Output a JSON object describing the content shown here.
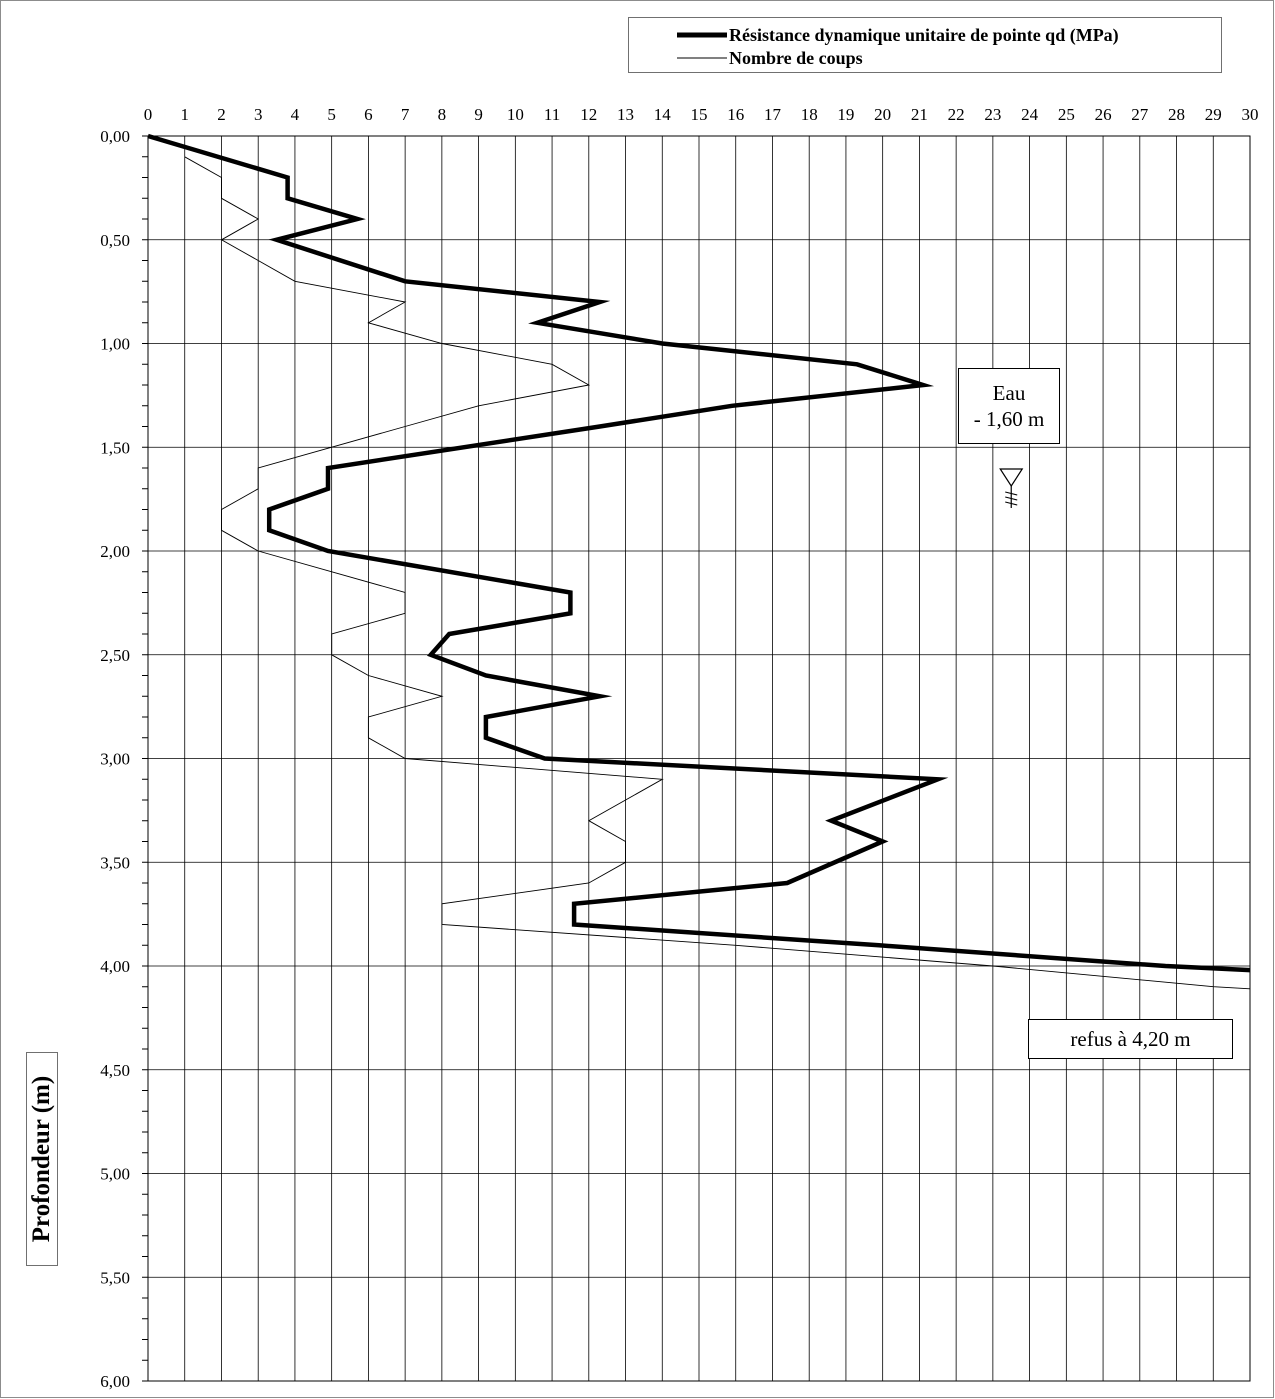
{
  "chart_data": {
    "type": "line",
    "orientation": "depth-profile",
    "x_ticks": [
      "0",
      "1",
      "2",
      "3",
      "4",
      "5",
      "6",
      "7",
      "8",
      "9",
      "10",
      "11",
      "12",
      "13",
      "14",
      "15",
      "16",
      "17",
      "18",
      "19",
      "20",
      "21",
      "22",
      "23",
      "24",
      "25",
      "26",
      "27",
      "28",
      "29",
      "30"
    ],
    "y_ticks": [
      {
        "value": 0.0,
        "label": "0,00"
      },
      {
        "value": 0.5,
        "label": "0,50"
      },
      {
        "value": 1.0,
        "label": "1,00"
      },
      {
        "value": 1.5,
        "label": "1,50"
      },
      {
        "value": 2.0,
        "label": "2,00"
      },
      {
        "value": 2.5,
        "label": "2,50"
      },
      {
        "value": 3.0,
        "label": "3,00"
      },
      {
        "value": 3.5,
        "label": "3,50"
      },
      {
        "value": 4.0,
        "label": "4,00"
      },
      {
        "value": 4.5,
        "label": "4,50"
      },
      {
        "value": 5.0,
        "label": "5,00"
      },
      {
        "value": 5.5,
        "label": "5,50"
      },
      {
        "value": 6.0,
        "label": "6,00"
      }
    ],
    "xlim": [
      0,
      30
    ],
    "ylim": [
      0,
      6
    ],
    "y_inverted": true,
    "ylabel": "Profondeur (m)",
    "grid": true,
    "legend_position": "top-right",
    "series": [
      {
        "name": "Résistance dynamique unitaire de pointe qd (MPa)",
        "color": "#000000",
        "style": "thick",
        "points": [
          [
            0,
            0.0
          ],
          [
            3.8,
            0.2
          ],
          [
            3.8,
            0.3
          ],
          [
            5.7,
            0.4
          ],
          [
            3.5,
            0.5
          ],
          [
            7.0,
            0.7
          ],
          [
            12.3,
            0.8
          ],
          [
            10.6,
            0.9
          ],
          [
            14.0,
            1.0
          ],
          [
            19.3,
            1.1
          ],
          [
            21.1,
            1.2
          ],
          [
            15.9,
            1.3
          ],
          [
            12.3,
            1.4
          ],
          [
            4.9,
            1.6
          ],
          [
            4.9,
            1.7
          ],
          [
            3.3,
            1.8
          ],
          [
            3.3,
            1.9
          ],
          [
            4.9,
            2.0
          ],
          [
            11.5,
            2.2
          ],
          [
            11.5,
            2.3
          ],
          [
            8.2,
            2.4
          ],
          [
            7.7,
            2.5
          ],
          [
            9.2,
            2.6
          ],
          [
            12.3,
            2.7
          ],
          [
            9.2,
            2.8
          ],
          [
            9.2,
            2.9
          ],
          [
            10.8,
            3.0
          ],
          [
            21.5,
            3.1
          ],
          [
            18.6,
            3.3
          ],
          [
            20.0,
            3.4
          ],
          [
            17.4,
            3.6
          ],
          [
            11.6,
            3.7
          ],
          [
            11.6,
            3.8
          ],
          [
            19.9,
            3.9
          ],
          [
            27.7,
            4.0
          ],
          [
            30.0,
            4.02
          ]
        ]
      },
      {
        "name": "Nombre de coups",
        "color": "#000000",
        "style": "thin",
        "points": [
          [
            1,
            0.1
          ],
          [
            2,
            0.2
          ],
          [
            2,
            0.3
          ],
          [
            3,
            0.4
          ],
          [
            2,
            0.5
          ],
          [
            3,
            0.6
          ],
          [
            4,
            0.7
          ],
          [
            7,
            0.8
          ],
          [
            6,
            0.9
          ],
          [
            8,
            1.0
          ],
          [
            11,
            1.1
          ],
          [
            12,
            1.2
          ],
          [
            9,
            1.3
          ],
          [
            7,
            1.4
          ],
          [
            3,
            1.6
          ],
          [
            3,
            1.7
          ],
          [
            2,
            1.8
          ],
          [
            2,
            1.9
          ],
          [
            3,
            2.0
          ],
          [
            7,
            2.2
          ],
          [
            7,
            2.3
          ],
          [
            5,
            2.4
          ],
          [
            5,
            2.5
          ],
          [
            6,
            2.6
          ],
          [
            8,
            2.7
          ],
          [
            6,
            2.8
          ],
          [
            6,
            2.9
          ],
          [
            7,
            3.0
          ],
          [
            14,
            3.1
          ],
          [
            12,
            3.3
          ],
          [
            13,
            3.4
          ],
          [
            13,
            3.5
          ],
          [
            12,
            3.6
          ],
          [
            8,
            3.7
          ],
          [
            8,
            3.8
          ],
          [
            16,
            3.9
          ],
          [
            23,
            4.0
          ],
          [
            29,
            4.1
          ],
          [
            30,
            4.11
          ]
        ]
      }
    ],
    "annotations": [
      {
        "lines": [
          "Eau",
          "- 1,60 m"
        ],
        "depth": 1.6,
        "x": 23.5
      },
      {
        "lines": [
          "refus à 4,20 m"
        ]
      }
    ]
  }
}
